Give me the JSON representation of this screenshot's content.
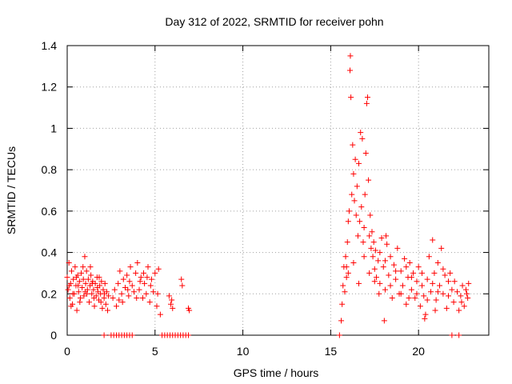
{
  "chart_data": {
    "type": "scatter",
    "title": "Day 312 of 2022, SRMTID for receiver pohn",
    "xlabel": "GPS time / hours",
    "ylabel": "SRMTID / TECUs",
    "xlim": [
      0,
      24
    ],
    "ylim": [
      0,
      1.4
    ],
    "x_ticks": [
      0,
      5,
      10,
      15,
      20
    ],
    "x_tick_labels": [
      "0",
      "5",
      "10",
      "15",
      "20"
    ],
    "y_ticks": [
      0,
      0.2,
      0.4,
      0.6,
      0.8,
      1.0,
      1.2,
      1.4
    ],
    "y_tick_labels": [
      "0",
      "0.2",
      "0.4",
      "0.6",
      "0.8",
      "1",
      "1.2",
      "1.4"
    ],
    "grid": true,
    "marker": "+",
    "series_color": "#ff0000",
    "series": [
      {
        "name": "SRMTID",
        "points": [
          [
            0.0,
            0.28
          ],
          [
            0.05,
            0.22
          ],
          [
            0.1,
            0.35
          ],
          [
            0.15,
            0.18
          ],
          [
            0.2,
            0.25
          ],
          [
            0.25,
            0.31
          ],
          [
            0.3,
            0.15
          ],
          [
            0.35,
            0.27
          ],
          [
            0.4,
            0.2
          ],
          [
            0.45,
            0.33
          ],
          [
            0.5,
            0.24
          ],
          [
            0.55,
            0.12
          ],
          [
            0.6,
            0.29
          ],
          [
            0.65,
            0.21
          ],
          [
            0.7,
            0.26
          ],
          [
            0.75,
            0.18
          ],
          [
            0.8,
            0.3
          ],
          [
            0.85,
            0.23
          ],
          [
            0.9,
            0.33
          ],
          [
            0.95,
            0.19
          ],
          [
            1.0,
            0.38
          ],
          [
            1.05,
            0.25
          ],
          [
            1.1,
            0.31
          ],
          [
            1.15,
            0.22
          ],
          [
            1.2,
            0.27
          ],
          [
            1.25,
            0.16
          ],
          [
            1.3,
            0.24
          ],
          [
            1.35,
            0.29
          ],
          [
            1.4,
            0.2
          ],
          [
            1.45,
            0.26
          ],
          [
            1.5,
            0.22
          ],
          [
            1.55,
            0.14
          ],
          [
            1.6,
            0.25
          ],
          [
            1.65,
            0.19
          ],
          [
            1.7,
            0.28
          ],
          [
            1.75,
            0.21
          ],
          [
            1.8,
            0.17
          ],
          [
            1.85,
            0.24
          ],
          [
            1.9,
            0.2
          ],
          [
            1.95,
            0.26
          ],
          [
            2.0,
            0.13
          ],
          [
            2.05,
            0.22
          ],
          [
            2.1,
            0.18
          ],
          [
            2.15,
            0.25
          ],
          [
            2.2,
            0.15
          ],
          [
            2.25,
            0.21
          ],
          [
            2.3,
            0.12
          ],
          [
            2.35,
            0.19
          ],
          [
            0.12,
            0.24
          ],
          [
            0.32,
            0.2
          ],
          [
            0.52,
            0.28
          ],
          [
            0.72,
            0.16
          ],
          [
            0.92,
            0.27
          ],
          [
            1.12,
            0.2
          ],
          [
            1.32,
            0.33
          ],
          [
            1.52,
            0.18
          ],
          [
            1.72,
            0.23
          ],
          [
            1.92,
            0.16
          ],
          [
            2.12,
            0.2
          ],
          [
            0.22,
            0.14
          ],
          [
            0.62,
            0.24
          ],
          [
            1.02,
            0.21
          ],
          [
            1.42,
            0.25
          ],
          [
            1.82,
            0.28
          ],
          [
            2.6,
            0.18
          ],
          [
            2.7,
            0.22
          ],
          [
            2.8,
            0.14
          ],
          [
            2.9,
            0.25
          ],
          [
            3.0,
            0.31
          ],
          [
            3.1,
            0.2
          ],
          [
            3.2,
            0.27
          ],
          [
            3.3,
            0.23
          ],
          [
            3.4,
            0.29
          ],
          [
            3.5,
            0.19
          ],
          [
            3.6,
            0.33
          ],
          [
            3.7,
            0.24
          ],
          [
            3.8,
            0.21
          ],
          [
            3.9,
            0.3
          ],
          [
            4.0,
            0.35
          ],
          [
            4.1,
            0.22
          ],
          [
            4.2,
            0.28
          ],
          [
            4.3,
            0.18
          ],
          [
            4.4,
            0.25
          ],
          [
            4.5,
            0.2
          ],
          [
            4.6,
            0.33
          ],
          [
            4.7,
            0.16
          ],
          [
            4.8,
            0.27
          ],
          [
            4.9,
            0.21
          ],
          [
            5.0,
            0.3
          ],
          [
            5.1,
            0.14
          ],
          [
            5.2,
            0.32
          ],
          [
            5.3,
            0.1
          ],
          [
            3.15,
            0.16
          ],
          [
            3.55,
            0.26
          ],
          [
            3.95,
            0.18
          ],
          [
            4.35,
            0.3
          ],
          [
            4.75,
            0.24
          ],
          [
            5.15,
            0.2
          ],
          [
            3.45,
            0.22
          ],
          [
            4.15,
            0.26
          ],
          [
            4.55,
            0.28
          ],
          [
            2.95,
            0.17
          ],
          [
            5.8,
            0.19
          ],
          [
            5.9,
            0.15
          ],
          [
            6.0,
            0.13
          ],
          [
            5.95,
            0.17
          ],
          [
            6.5,
            0.27
          ],
          [
            6.55,
            0.24
          ],
          [
            6.9,
            0.13
          ],
          [
            6.95,
            0.12
          ],
          [
            15.6,
            0.07
          ],
          [
            15.65,
            0.15
          ],
          [
            15.7,
            0.24
          ],
          [
            15.75,
            0.33
          ],
          [
            15.8,
            0.21
          ],
          [
            15.85,
            0.38
          ],
          [
            15.9,
            0.28
          ],
          [
            15.95,
            0.45
          ],
          [
            16.0,
            0.55
          ],
          [
            16.05,
            0.6
          ],
          [
            16.1,
            1.28
          ],
          [
            16.12,
            1.35
          ],
          [
            16.15,
            1.15
          ],
          [
            16.2,
            0.68
          ],
          [
            16.25,
            0.92
          ],
          [
            16.3,
            0.78
          ],
          [
            16.35,
            0.65
          ],
          [
            16.4,
            0.85
          ],
          [
            16.45,
            0.58
          ],
          [
            16.5,
            0.72
          ],
          [
            16.55,
            0.48
          ],
          [
            16.6,
            0.83
          ],
          [
            16.65,
            0.55
          ],
          [
            16.7,
            0.98
          ],
          [
            16.75,
            0.62
          ],
          [
            16.8,
            0.95
          ],
          [
            16.85,
            0.45
          ],
          [
            16.9,
            0.52
          ],
          [
            16.95,
            0.68
          ],
          [
            17.0,
            0.88
          ],
          [
            17.05,
            1.12
          ],
          [
            17.1,
            1.15
          ],
          [
            17.15,
            0.75
          ],
          [
            17.2,
            0.48
          ],
          [
            17.25,
            0.58
          ],
          [
            17.3,
            0.42
          ],
          [
            17.35,
            0.5
          ],
          [
            17.4,
            0.38
          ],
          [
            17.45,
            0.45
          ],
          [
            17.5,
            0.32
          ],
          [
            17.55,
            0.41
          ],
          [
            17.6,
            0.28
          ],
          [
            17.7,
            0.36
          ],
          [
            17.8,
            0.25
          ],
          [
            17.9,
            0.47
          ],
          [
            18.0,
            0.33
          ],
          [
            18.1,
            0.22
          ],
          [
            18.2,
            0.44
          ],
          [
            18.3,
            0.29
          ],
          [
            18.4,
            0.38
          ],
          [
            18.5,
            0.18
          ],
          [
            18.6,
            0.34
          ],
          [
            18.7,
            0.27
          ],
          [
            18.8,
            0.42
          ],
          [
            18.9,
            0.2
          ],
          [
            19.0,
            0.31
          ],
          [
            19.1,
            0.24
          ],
          [
            19.2,
            0.37
          ],
          [
            19.3,
            0.15
          ],
          [
            19.4,
            0.28
          ],
          [
            19.5,
            0.35
          ],
          [
            19.6,
            0.22
          ],
          [
            19.7,
            0.3
          ],
          [
            19.8,
            0.18
          ],
          [
            19.9,
            0.26
          ],
          [
            20.0,
            0.33
          ],
          [
            20.1,
            0.14
          ],
          [
            20.2,
            0.24
          ],
          [
            20.3,
            0.19
          ],
          [
            20.4,
            0.1
          ],
          [
            20.5,
            0.27
          ],
          [
            20.6,
            0.38
          ],
          [
            20.7,
            0.21
          ],
          [
            20.8,
            0.46
          ],
          [
            20.9,
            0.3
          ],
          [
            21.0,
            0.17
          ],
          [
            21.1,
            0.35
          ],
          [
            21.2,
            0.24
          ],
          [
            21.3,
            0.42
          ],
          [
            21.4,
            0.2
          ],
          [
            21.5,
            0.29
          ],
          [
            21.6,
            0.13
          ],
          [
            21.7,
            0.26
          ],
          [
            21.8,
            0.3
          ],
          [
            21.9,
            0.22
          ],
          [
            22.0,
            0.16
          ],
          [
            22.2,
            0.21
          ],
          [
            22.3,
            0.12
          ],
          [
            22.4,
            0.19
          ],
          [
            22.5,
            0.24
          ],
          [
            22.6,
            0.14
          ],
          [
            22.7,
            0.22
          ],
          [
            22.8,
            0.18
          ],
          [
            22.85,
            0.25
          ],
          [
            15.9,
            0.33
          ],
          [
            16.0,
            0.3
          ],
          [
            16.3,
            0.35
          ],
          [
            16.6,
            0.25
          ],
          [
            16.9,
            0.38
          ],
          [
            17.2,
            0.3
          ],
          [
            17.5,
            0.26
          ],
          [
            17.8,
            0.4
          ],
          [
            18.1,
            0.36
          ],
          [
            18.4,
            0.24
          ],
          [
            18.7,
            0.31
          ],
          [
            19.0,
            0.2
          ],
          [
            19.3,
            0.33
          ],
          [
            19.6,
            0.28
          ],
          [
            19.9,
            0.2
          ],
          [
            20.2,
            0.3
          ],
          [
            20.5,
            0.17
          ],
          [
            20.8,
            0.25
          ],
          [
            21.1,
            0.21
          ],
          [
            21.4,
            0.32
          ],
          [
            21.7,
            0.19
          ],
          [
            22.05,
            0.26
          ],
          [
            22.45,
            0.16
          ],
          [
            22.75,
            0.2
          ],
          [
            17.75,
            0.2
          ],
          [
            18.15,
            0.48
          ],
          [
            19.45,
            0.18
          ],
          [
            20.35,
            0.08
          ],
          [
            20.95,
            0.12
          ],
          [
            18.05,
            0.07
          ],
          [
            2.5,
            0.0
          ],
          [
            2.65,
            0.0
          ],
          [
            2.8,
            0.0
          ],
          [
            2.95,
            0.0
          ],
          [
            3.1,
            0.0
          ],
          [
            3.25,
            0.0
          ],
          [
            3.4,
            0.0
          ],
          [
            3.55,
            0.0
          ],
          [
            3.7,
            0.0
          ],
          [
            5.4,
            0.0
          ],
          [
            5.55,
            0.0
          ],
          [
            5.7,
            0.0
          ],
          [
            5.85,
            0.0
          ],
          [
            6.0,
            0.0
          ],
          [
            6.15,
            0.0
          ],
          [
            6.3,
            0.0
          ],
          [
            6.45,
            0.0
          ],
          [
            6.6,
            0.0
          ],
          [
            6.75,
            0.0
          ],
          [
            6.9,
            0.0
          ],
          [
            2.1,
            0.0
          ],
          [
            15.5,
            0.0
          ],
          [
            21.9,
            0.0
          ],
          [
            22.3,
            0.0
          ]
        ]
      }
    ]
  }
}
